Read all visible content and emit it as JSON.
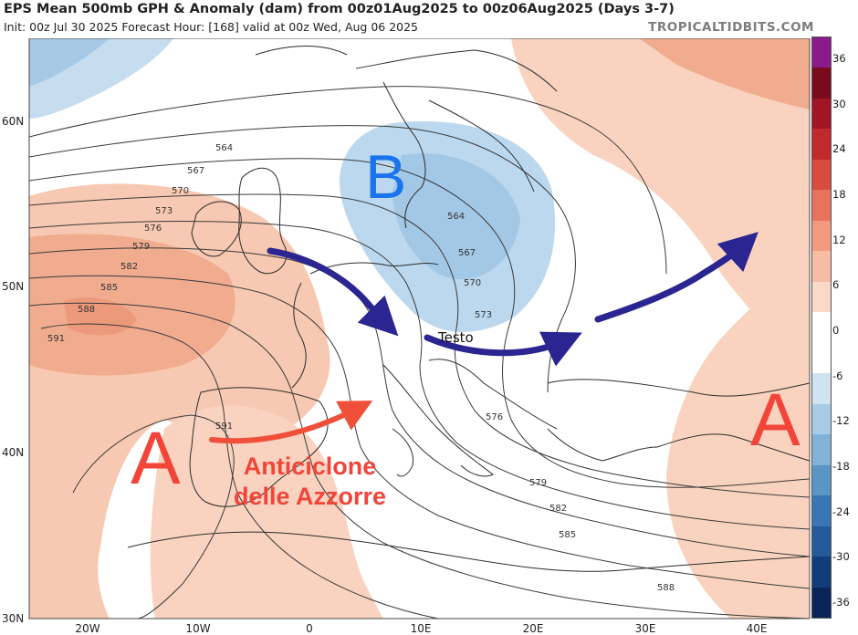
{
  "header": {
    "title": "EPS Mean 500mb GPH & Anomaly (dam) from 00z01Aug2025 to 00z06Aug2025 (Days 3-7)",
    "subtitle": "Init: 00z Jul 30 2025   Forecast Hour: [168]   valid at 00z Wed, Aug 06 2025",
    "brand": "TROPICALTIDBITS.COM"
  },
  "axes": {
    "latitude_labels": [
      "60N",
      "50N",
      "40N",
      "30N"
    ],
    "longitude_labels": [
      "20W",
      "10W",
      "0",
      "10E",
      "20E",
      "30E",
      "40E"
    ]
  },
  "colorbar": {
    "ticks": [
      "36",
      "30",
      "24",
      "18",
      "12",
      "6",
      "0",
      "-6",
      "-12",
      "-18",
      "-24",
      "-30",
      "-36"
    ],
    "colors": [
      "#8b1a8b",
      "#7a0a1e",
      "#a11525",
      "#c02a2d",
      "#d84b3f",
      "#e8725c",
      "#f19a80",
      "#f7bca4",
      "#fbd9c9",
      "#ffffff",
      "#ffffff",
      "#cfe3f1",
      "#a9cce6",
      "#82b3d7",
      "#5a95c6",
      "#3a77b2",
      "#245a98",
      "#133d7a",
      "#0a2558"
    ]
  },
  "contours": {
    "labels": [
      "564",
      "567",
      "570",
      "573",
      "576",
      "579",
      "582",
      "585",
      "588",
      "591",
      "591",
      "564",
      "567",
      "570",
      "573",
      "576",
      "579",
      "582",
      "585",
      "588"
    ]
  },
  "annotations": {
    "low": "B",
    "high_west": "A",
    "high_east": "A",
    "anticyclone_line1": "Anticiclone",
    "anticyclone_line2": "delle Azzorre",
    "trough": "Testo"
  },
  "colors": {
    "high_label": "#f2453a",
    "low_label": "#1a74f0",
    "flow_arrow": "#2a2590",
    "ridge_arrow": "#f0503a",
    "warm_anomaly": "#f4b89c",
    "cold_anomaly": "#8fbde0"
  }
}
